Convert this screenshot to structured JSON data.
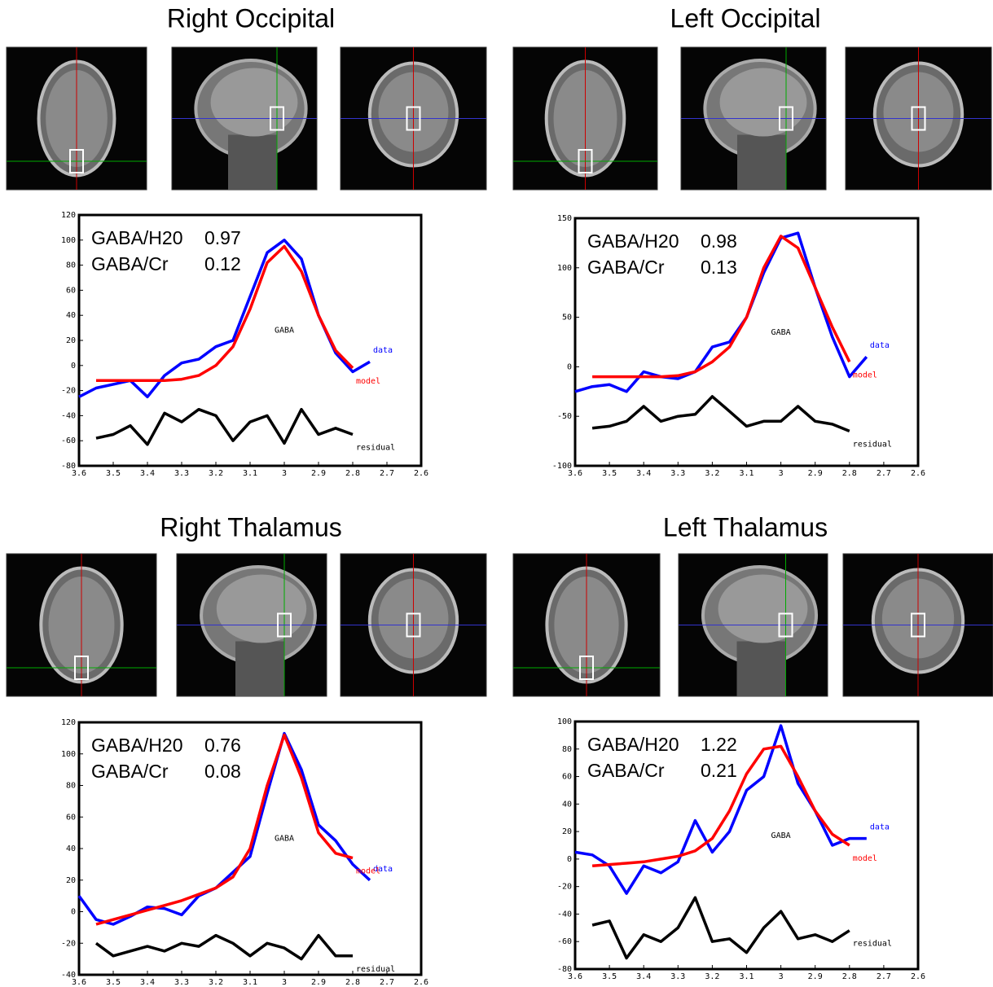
{
  "chart_data": [
    {
      "type": "line",
      "title": "Right Occipital",
      "xlim": [
        3.6,
        2.6
      ],
      "xticks": [
        3.6,
        3.5,
        3.4,
        3.3,
        3.2,
        3.1,
        3,
        2.9,
        2.8,
        2.7,
        2.6
      ],
      "ylim": [
        -80,
        120
      ],
      "yticks": [
        -80,
        -60,
        -40,
        -20,
        0,
        20,
        40,
        60,
        80,
        100,
        120
      ],
      "ratios": [
        {
          "label": "GABA/H20",
          "value": 0.97
        },
        {
          "label": "GABA/Cr",
          "value": 0.12
        }
      ],
      "peak_label": "GABA",
      "x": [
        3.6,
        3.55,
        3.5,
        3.45,
        3.4,
        3.35,
        3.3,
        3.25,
        3.2,
        3.15,
        3.1,
        3.05,
        3,
        2.95,
        2.9,
        2.85,
        2.8,
        2.75
      ],
      "series": [
        {
          "name": "data",
          "color": "#0000ff",
          "values": [
            -25,
            -18,
            -15,
            -12,
            -25,
            -8,
            2,
            5,
            15,
            20,
            55,
            90,
            100,
            85,
            40,
            10,
            -5,
            3
          ]
        },
        {
          "name": "model",
          "color": "#ff0000",
          "values": [
            null,
            -12,
            -12,
            -12,
            -12,
            -12,
            -11,
            -8,
            0,
            15,
            45,
            82,
            95,
            75,
            40,
            12,
            -2,
            null
          ]
        },
        {
          "name": "residual",
          "color": "#000000",
          "values": [
            null,
            -58,
            -55,
            -48,
            -63,
            -38,
            -45,
            -35,
            -40,
            -60,
            -45,
            -40,
            -62,
            -35,
            -55,
            -50,
            -55,
            null
          ]
        }
      ]
    },
    {
      "type": "line",
      "title": "Left Occipital",
      "xlim": [
        3.6,
        2.6
      ],
      "xticks": [
        3.6,
        3.5,
        3.4,
        3.3,
        3.2,
        3.1,
        3,
        2.9,
        2.8,
        2.7,
        2.6
      ],
      "ylim": [
        -100,
        150
      ],
      "yticks": [
        -100,
        -50,
        0,
        50,
        100,
        150
      ],
      "ratios": [
        {
          "label": "GABA/H20",
          "value": 0.98
        },
        {
          "label": "GABA/Cr",
          "value": 0.13
        }
      ],
      "peak_label": "GABA",
      "x": [
        3.6,
        3.55,
        3.5,
        3.45,
        3.4,
        3.35,
        3.3,
        3.25,
        3.2,
        3.15,
        3.1,
        3.05,
        3,
        2.95,
        2.9,
        2.85,
        2.8,
        2.75
      ],
      "series": [
        {
          "name": "data",
          "color": "#0000ff",
          "values": [
            -25,
            -20,
            -18,
            -25,
            -5,
            -10,
            -12,
            -5,
            20,
            25,
            50,
            95,
            130,
            135,
            80,
            30,
            -10,
            10
          ]
        },
        {
          "name": "model",
          "color": "#ff0000",
          "values": [
            null,
            -10,
            -10,
            -10,
            -10,
            -10,
            -9,
            -5,
            5,
            20,
            50,
            100,
            132,
            120,
            80,
            40,
            5,
            null
          ]
        },
        {
          "name": "residual",
          "color": "#000000",
          "values": [
            null,
            -62,
            -60,
            -55,
            -40,
            -55,
            -50,
            -48,
            -30,
            -45,
            -60,
            -55,
            -55,
            -40,
            -55,
            -58,
            -65,
            null
          ]
        }
      ]
    },
    {
      "type": "line",
      "title": "Right Thalamus",
      "xlim": [
        3.6,
        2.6
      ],
      "xticks": [
        3.6,
        3.5,
        3.4,
        3.3,
        3.2,
        3.1,
        3,
        2.9,
        2.8,
        2.7,
        2.6
      ],
      "ylim": [
        -40,
        120
      ],
      "yticks": [
        -40,
        -20,
        0,
        20,
        40,
        60,
        80,
        100,
        120
      ],
      "ratios": [
        {
          "label": "GABA/H20",
          "value": 0.76
        },
        {
          "label": "GABA/Cr",
          "value": 0.08
        }
      ],
      "peak_label": "GABA",
      "x": [
        3.6,
        3.55,
        3.5,
        3.45,
        3.4,
        3.35,
        3.3,
        3.25,
        3.2,
        3.15,
        3.1,
        3.05,
        3,
        2.95,
        2.9,
        2.85,
        2.8,
        2.75
      ],
      "series": [
        {
          "name": "data",
          "color": "#0000ff",
          "values": [
            10,
            -5,
            -8,
            -3,
            3,
            2,
            -2,
            10,
            15,
            25,
            35,
            75,
            113,
            90,
            55,
            45,
            30,
            20
          ]
        },
        {
          "name": "model",
          "color": "#ff0000",
          "values": [
            null,
            -8,
            -5,
            -2,
            1,
            4,
            7,
            11,
            15,
            22,
            40,
            80,
            112,
            85,
            50,
            37,
            34,
            null
          ]
        },
        {
          "name": "residual",
          "color": "#000000",
          "values": [
            null,
            -20,
            -28,
            -25,
            -22,
            -25,
            -20,
            -22,
            -15,
            -20,
            -28,
            -20,
            -23,
            -30,
            -15,
            -28,
            -28,
            null
          ]
        }
      ]
    },
    {
      "type": "line",
      "title": "Left Thalamus",
      "xlim": [
        3.6,
        2.6
      ],
      "xticks": [
        3.6,
        3.5,
        3.4,
        3.3,
        3.2,
        3.1,
        3,
        2.9,
        2.8,
        2.7,
        2.6
      ],
      "ylim": [
        -80,
        100
      ],
      "yticks": [
        -80,
        -60,
        -40,
        -20,
        0,
        20,
        40,
        60,
        80,
        100
      ],
      "ratios": [
        {
          "label": "GABA/H20",
          "value": 1.22
        },
        {
          "label": "GABA/Cr",
          "value": 0.21
        }
      ],
      "peak_label": "GABA",
      "x": [
        3.6,
        3.55,
        3.5,
        3.45,
        3.4,
        3.35,
        3.3,
        3.25,
        3.2,
        3.15,
        3.1,
        3.05,
        3,
        2.95,
        2.9,
        2.85,
        2.8,
        2.75
      ],
      "series": [
        {
          "name": "data",
          "color": "#0000ff",
          "values": [
            5,
            3,
            -5,
            -25,
            -5,
            -10,
            -2,
            28,
            5,
            20,
            50,
            60,
            97,
            55,
            35,
            10,
            15,
            15
          ]
        },
        {
          "name": "model",
          "color": "#ff0000",
          "values": [
            null,
            -5,
            -4,
            -3,
            -2,
            0,
            2,
            6,
            15,
            35,
            62,
            80,
            82,
            60,
            35,
            18,
            10,
            null
          ]
        },
        {
          "name": "residual",
          "color": "#000000",
          "values": [
            null,
            -48,
            -45,
            -72,
            -55,
            -60,
            -50,
            -28,
            -60,
            -58,
            -68,
            -50,
            -38,
            -58,
            -55,
            -60,
            -52,
            null
          ]
        }
      ]
    }
  ]
}
